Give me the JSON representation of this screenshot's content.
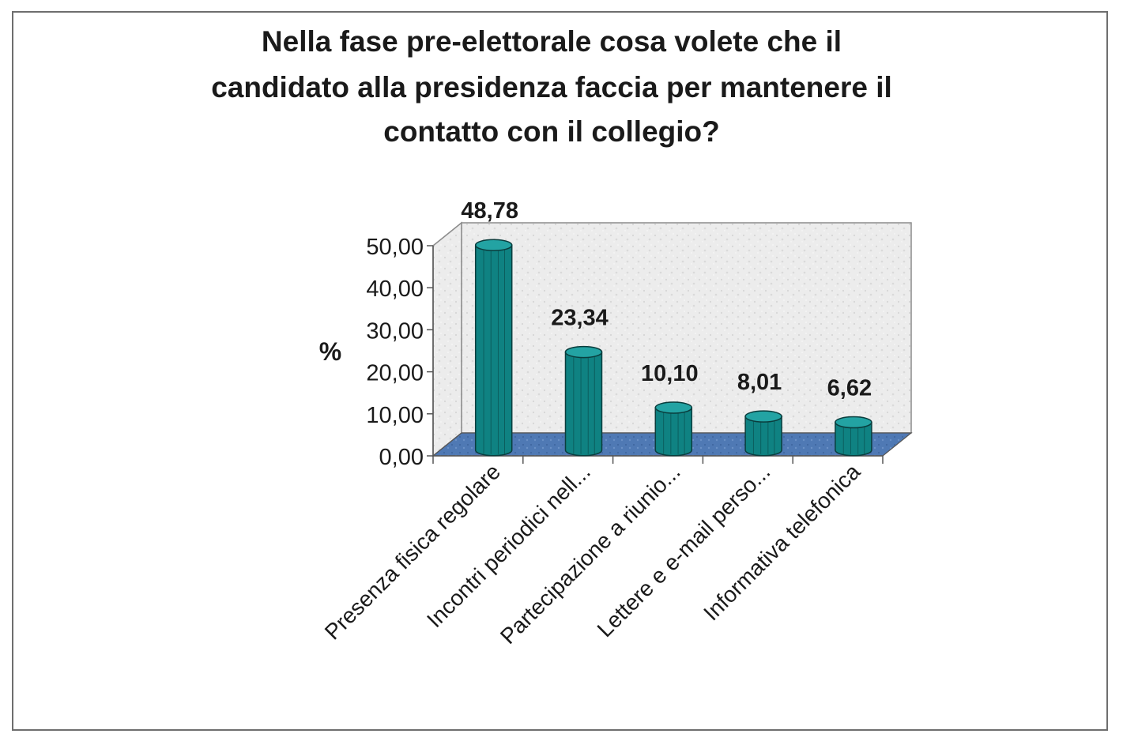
{
  "chart_data": {
    "type": "bar",
    "title_lines": [
      "Nella fase pre-elettorale cosa volete che il",
      "candidato alla presidenza faccia per mantenere il",
      "contatto con il collegio?"
    ],
    "ylabel": "%",
    "xlabel": "",
    "ylim": [
      0,
      50
    ],
    "yticks": [
      "0,00",
      "10,00",
      "20,00",
      "30,00",
      "40,00",
      "50,00"
    ],
    "categories": [
      "Presenza fisica regolare",
      "Incontri periodici nell...",
      "Partecipazione a riunio...",
      "Lettere e e-mail perso...",
      "Informativa telefonica"
    ],
    "values": [
      48.78,
      23.34,
      10.1,
      8.01,
      6.62
    ],
    "value_labels": [
      "48,78",
      "23,34",
      "10,10",
      "8,01",
      "6,62"
    ],
    "grid": false,
    "legend": "none",
    "colors": {
      "bar": "#0f8282",
      "bar_top": "#23a3a3",
      "floor": "#4f79b4",
      "wall": "#eaeaea",
      "axis": "#555555"
    }
  }
}
